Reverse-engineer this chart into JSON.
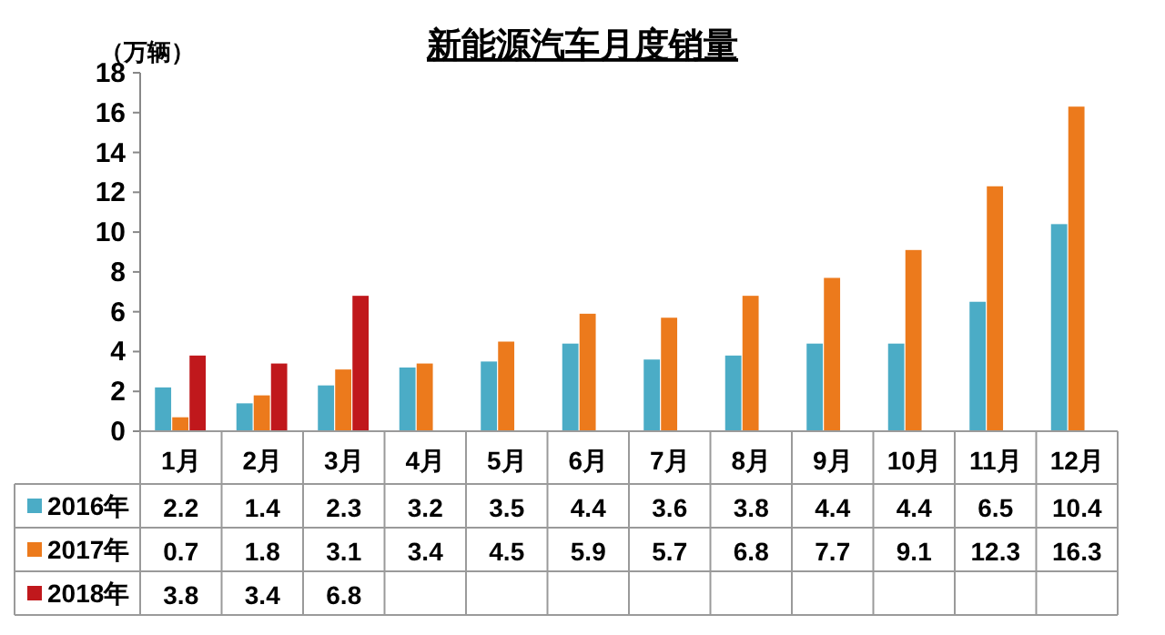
{
  "chart_data": {
    "type": "bar",
    "title": "新能源汽车月度销量",
    "ylabel": "（万辆）",
    "categories": [
      "1月",
      "2月",
      "3月",
      "4月",
      "5月",
      "6月",
      "7月",
      "8月",
      "9月",
      "10月",
      "11月",
      "12月"
    ],
    "series": [
      {
        "name": "2016年",
        "color": "#4bacc6",
        "values": [
          2.2,
          1.4,
          2.3,
          3.2,
          3.5,
          4.4,
          3.6,
          3.8,
          4.4,
          4.4,
          6.5,
          10.4
        ]
      },
      {
        "name": "2017年",
        "color": "#ec7a1c",
        "values": [
          0.7,
          1.8,
          3.1,
          3.4,
          4.5,
          5.9,
          5.7,
          6.8,
          7.7,
          9.1,
          12.3,
          16.3
        ]
      },
      {
        "name": "2018年",
        "color": "#c0181c",
        "values": [
          3.8,
          3.4,
          6.8,
          null,
          null,
          null,
          null,
          null,
          null,
          null,
          null,
          null
        ]
      }
    ],
    "ylim": [
      0,
      18
    ],
    "yticks": [
      0,
      2,
      4,
      6,
      8,
      10,
      12,
      14,
      16,
      18
    ],
    "data_labels": true,
    "legend": "bottom"
  }
}
